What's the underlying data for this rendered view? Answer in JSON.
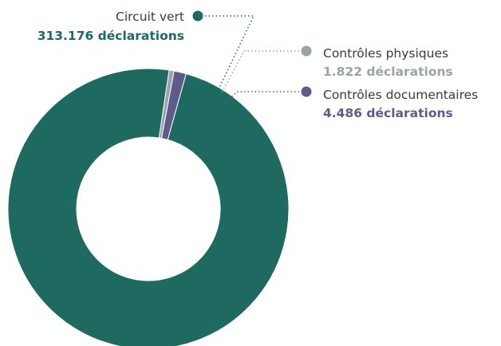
{
  "chart_data": {
    "type": "pie",
    "variant": "donut",
    "start_angle_deg": 8.5,
    "slices": [
      {
        "label": "Circuit vert",
        "value_text": "313.176 déclarations",
        "value": 313176,
        "color": "#1f6a60"
      },
      {
        "label": "Contrôles physiques",
        "value_text": "1.822 déclarations",
        "value": 1822,
        "color": "#9aa3a6"
      },
      {
        "label": "Contrôles documentaires",
        "value_text": "4.486 déclarations",
        "value": 4486,
        "color": "#5f5a8c"
      }
    ]
  }
}
